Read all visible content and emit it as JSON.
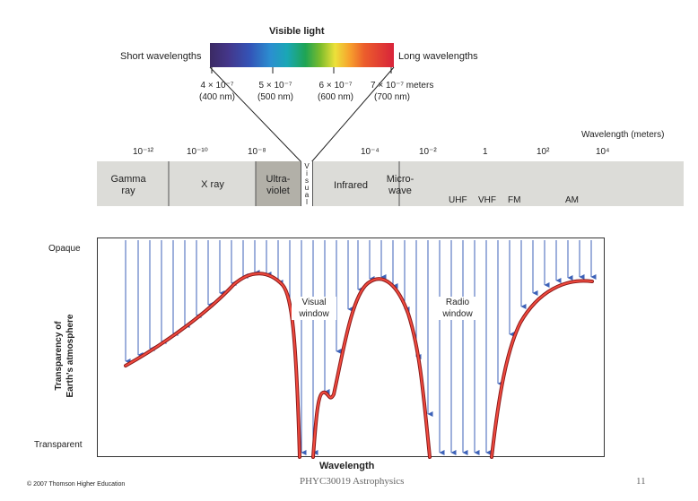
{
  "visible": {
    "title": "Visible light",
    "short_label": "Short wavelengths",
    "long_label": "Long wavelengths",
    "ticks": [
      {
        "sci": "4 × 10⁻⁷",
        "nm": "(400 nm)"
      },
      {
        "sci": "5 × 10⁻⁷",
        "nm": "(500 nm)"
      },
      {
        "sci": "6 × 10⁻⁷",
        "nm": "(600 nm)"
      },
      {
        "sci": "7 × 10⁻⁷",
        "nm": "(700 nm)",
        "unit": "meters"
      }
    ]
  },
  "scale": {
    "axis_title": "Wavelength (meters)",
    "ticks": [
      "10⁻¹²",
      "10⁻¹⁰",
      "10⁻⁸",
      "10⁻⁴",
      "10⁻²",
      "1",
      "10²",
      "10⁴"
    ]
  },
  "bands": {
    "gamma": [
      "Gamma",
      "ray"
    ],
    "xray": "X ray",
    "uv": [
      "Ultra-",
      "violet"
    ],
    "visual_letters": [
      "V",
      "i",
      "s",
      "u",
      "a",
      "l"
    ],
    "infrared": "Infrared",
    "microwave": [
      "Micro-",
      "wave"
    ],
    "uhf": "UHF",
    "vhf": "VHF",
    "fm": "FM",
    "am": "AM"
  },
  "plot": {
    "opaque": "Opaque",
    "transparent": "Transparent",
    "ylabel_line1": "Transparency of",
    "ylabel_line2": "Earth's atmosphere",
    "visual_window": [
      "Visual",
      "window"
    ],
    "radio_window": [
      "Radio",
      "window"
    ],
    "xlabel": "Wavelength"
  },
  "footer": {
    "copyright": "© 2007 Thomson Higher Education",
    "course": "PHYC30019 Astrophysics",
    "page": "11"
  },
  "colors": {
    "curve": "#e8302a",
    "arrows": "#3d62b8",
    "band_bg": "#dcdcd8",
    "band_dark": "#b2b0a8"
  }
}
